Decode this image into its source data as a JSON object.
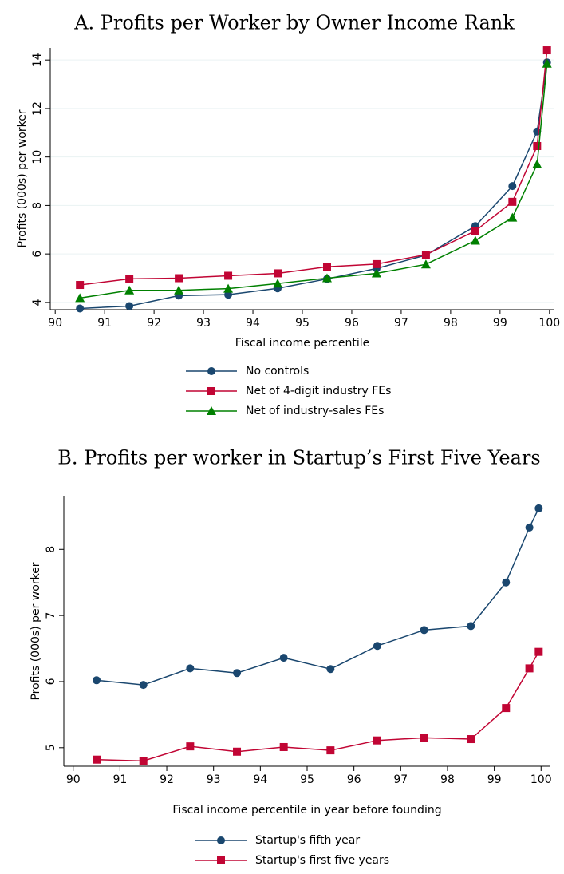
{
  "chart_data": [
    {
      "type": "line",
      "title": "A. Profits per Worker by Owner Income Rank",
      "x_label": "Fiscal income percentile",
      "y_label": "Profits (000s) per worker",
      "x": [
        90.5,
        91.5,
        92.5,
        93.5,
        94.5,
        95.5,
        96.5,
        97.5,
        98.5,
        99.25,
        99.75,
        99.95
      ],
      "series": [
        {
          "name": "No controls",
          "color": "#1a476f",
          "marker": "circle",
          "values": [
            3.75,
            3.85,
            4.28,
            4.32,
            4.58,
            4.97,
            5.4,
            5.95,
            7.15,
            8.8,
            11.05,
            13.9
          ]
        },
        {
          "name": "Net of 4-digit industry FEs",
          "color": "#c10534",
          "marker": "square",
          "values": [
            4.72,
            4.97,
            5.0,
            5.1,
            5.2,
            5.47,
            5.58,
            5.97,
            6.95,
            8.15,
            10.45,
            14.4
          ]
        },
        {
          "name": "Net of industry-sales FEs",
          "color": "#008000",
          "marker": "triangle",
          "values": [
            4.18,
            4.5,
            4.5,
            4.57,
            4.78,
            5.0,
            5.2,
            5.57,
            6.55,
            7.5,
            9.7,
            13.85
          ]
        }
      ],
      "xlim": [
        89.9,
        100.1
      ],
      "xticks": [
        90,
        91,
        92,
        93,
        94,
        95,
        96,
        97,
        98,
        99,
        100
      ],
      "ylim": [
        3.7,
        14.5
      ],
      "yticks": [
        4,
        6,
        8,
        10,
        12,
        14
      ],
      "grid": true,
      "legend": "bottom"
    },
    {
      "type": "line",
      "title": "B. Profits per worker in Startup’s First Five Years",
      "x_label": "Fiscal income percentile in year before founding",
      "y_label": "Profits (000s) per worker",
      "x": [
        90.5,
        91.5,
        92.5,
        93.5,
        94.5,
        95.5,
        96.5,
        97.5,
        98.5,
        99.25,
        99.75,
        99.95
      ],
      "series": [
        {
          "name": "Startup's fifth year",
          "color": "#1a476f",
          "marker": "circle",
          "values": [
            6.02,
            5.95,
            6.2,
            6.13,
            6.36,
            6.19,
            6.54,
            6.78,
            6.84,
            7.5,
            8.33,
            8.62
          ]
        },
        {
          "name": "Startup's first five years",
          "color": "#c10534",
          "marker": "square",
          "values": [
            4.82,
            4.8,
            5.02,
            4.94,
            5.01,
            4.96,
            5.11,
            5.15,
            5.13,
            5.6,
            6.2,
            6.45
          ]
        }
      ],
      "xlim": [
        89.8,
        100.2
      ],
      "xticks": [
        90,
        91,
        92,
        93,
        94,
        95,
        96,
        97,
        98,
        99,
        100
      ],
      "ylim": [
        4.72,
        8.8
      ],
      "yticks": [
        5,
        6,
        7,
        8
      ],
      "grid": false,
      "legend": "bottom"
    }
  ]
}
